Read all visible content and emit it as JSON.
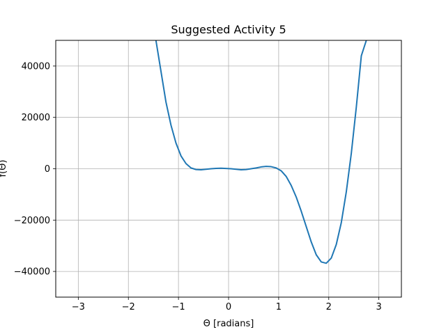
{
  "chart_data": {
    "type": "line",
    "title": "Suggested Activity 5",
    "xlabel": "Θ [radians]",
    "ylabel": "f(Θ)",
    "xlim": [
      -3.45,
      3.45
    ],
    "ylim": [
      -50000,
      50000
    ],
    "grid": true,
    "xticks": [
      -3,
      -2,
      -1,
      0,
      1,
      2,
      3
    ],
    "xtick_labels": [
      "−3",
      "−2",
      "−1",
      "0",
      "1",
      "2",
      "3"
    ],
    "yticks": [
      -40000,
      -20000,
      0,
      20000,
      40000
    ],
    "ytick_labels": [
      "−40000",
      "−20000",
      "0",
      "20000",
      "40000"
    ],
    "series": [
      {
        "color": "#1f77b4",
        "x": [
          -1.45,
          -1.35,
          -1.25,
          -1.15,
          -1.05,
          -0.95,
          -0.85,
          -0.75,
          -0.65,
          -0.55,
          -0.45,
          -0.35,
          -0.25,
          -0.15,
          -0.05,
          0.05,
          0.15,
          0.25,
          0.35,
          0.45,
          0.55,
          0.65,
          0.75,
          0.85,
          0.95,
          1.05,
          1.15,
          1.25,
          1.35,
          1.45,
          1.55,
          1.65,
          1.75,
          1.85,
          1.95,
          2.05,
          2.15,
          2.25,
          2.35,
          2.45,
          2.55,
          2.65,
          2.75,
          2.8
        ],
        "y": [
          50000,
          38000,
          26000,
          17000,
          10000,
          5000,
          2000,
          300,
          -300,
          -400,
          -200,
          0,
          150,
          200,
          100,
          0,
          -200,
          -400,
          -300,
          0,
          300,
          700,
          900,
          800,
          300,
          -800,
          -3000,
          -6500,
          -11000,
          -16500,
          -22500,
          -28500,
          -33500,
          -36300,
          -36800,
          -34800,
          -29500,
          -21000,
          -9000,
          6000,
          24000,
          44000,
          50000,
          52000
        ]
      }
    ]
  }
}
